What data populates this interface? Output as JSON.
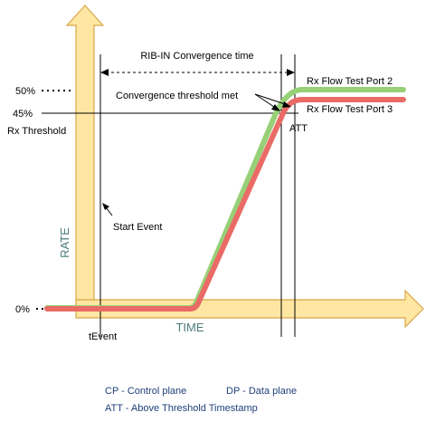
{
  "title": "RIB-IN Convergence time",
  "axes": {
    "x_label": "TIME",
    "y_label": "RATE"
  },
  "y_markers": {
    "p50": "50%",
    "p45": "45%",
    "p0": "0%"
  },
  "labels": {
    "rx_threshold": "Rx  Threshold",
    "convergence_met": "Convergence threshold met",
    "att": "ATT",
    "start_event": "Start Event",
    "t_event": "tEvent"
  },
  "series": {
    "port2": "Rx Flow Test Port 2",
    "port3": "Rx Flow Test Port 3"
  },
  "legend": {
    "cp": "CP - Control plane",
    "dp": "DP - Data plane",
    "att": "ATT - Above Threshold Timestamp"
  },
  "colors": {
    "axis": "#ffe6a3",
    "axis_stroke": "#d6a84a",
    "port2": "#97d077",
    "port3": "#ea6b66",
    "axis_title": "#4d7a7a",
    "legend": "#1f3f7a"
  }
}
